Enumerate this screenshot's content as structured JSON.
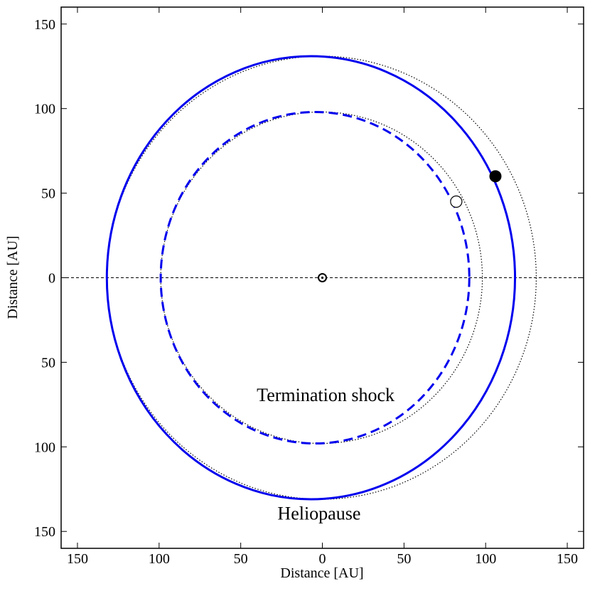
{
  "chart_data": {
    "type": "line",
    "xlabel": "Distance [AU]",
    "ylabel": "Distance [AU]",
    "xlim": [
      -160,
      160
    ],
    "ylim": [
      -160,
      160
    ],
    "xticks": [
      -150,
      -100,
      -50,
      0,
      50,
      100,
      150
    ],
    "yticks": [
      -150,
      -100,
      -50,
      0,
      50,
      100,
      150
    ],
    "xtick_labels": [
      "150",
      "100",
      "50",
      "0",
      "50",
      "100",
      "150"
    ],
    "ytick_labels": [
      "150",
      "100",
      "50",
      "0",
      "50",
      "100",
      "150"
    ],
    "grid": false,
    "legend": "none",
    "colors": {
      "boundary": "#0000ee",
      "reference": "#000000"
    },
    "series": [
      {
        "name": "Heliopause",
        "style": "solid",
        "color": "#0000ee",
        "shape": "ellipse",
        "x_min": -132,
        "x_max": 118,
        "y_min": -131,
        "y_max": 131
      },
      {
        "name": "Termination shock",
        "style": "dashed",
        "color": "#0000ee",
        "shape": "ellipse",
        "x_min": -99,
        "x_max": 90,
        "y_min": -98,
        "y_max": 98
      },
      {
        "style": "dotted",
        "color": "#000000",
        "shape": "ellipse",
        "x_min": -132,
        "x_max": 131,
        "y_min": -131,
        "y_max": 131
      },
      {
        "style": "dotted",
        "color": "#000000",
        "shape": "ellipse",
        "x_min": -99,
        "x_max": 98,
        "y_min": -98,
        "y_max": 98
      }
    ],
    "horizontal_line": {
      "y": 0,
      "style": "dashed",
      "color": "#000000"
    },
    "points": [
      {
        "marker": "sun-symbol",
        "x": 0,
        "y": 0
      },
      {
        "marker": "filled-circle",
        "x": 106,
        "y": 60
      },
      {
        "marker": "open-circle",
        "x": 82,
        "y": 45
      }
    ],
    "annotations": [
      {
        "text": "Termination shock",
        "x": 2,
        "y": -73
      },
      {
        "text": "Heliopause",
        "x": -2,
        "y": -143
      }
    ]
  }
}
